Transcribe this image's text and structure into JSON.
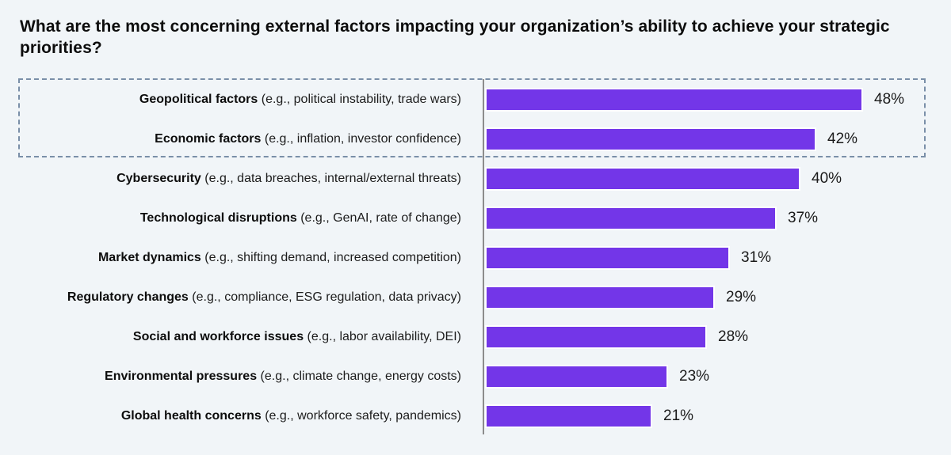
{
  "title": "What are the most concerning external factors impacting your organization’s ability to achieve your strategic priorities?",
  "colors": {
    "background": "#f1f5f8",
    "bar": "#7336e8",
    "bar_outline": "#ffffff",
    "axis_line": "#8c8c8c",
    "highlight_border": "#7a8fa8",
    "text": "#0d0d0d"
  },
  "chart_data": {
    "type": "bar",
    "orientation": "horizontal",
    "title": "What are the most concerning external factors impacting your organization’s ability to achieve your strategic priorities?",
    "unit": "%",
    "xlim": [
      0,
      56
    ],
    "gridlines": false,
    "value_labels_position": "end-of-bar",
    "highlight": {
      "style": "dashed-outline",
      "categories": [
        "Geopolitical factors",
        "Economic factors"
      ]
    },
    "categories": [
      "Geopolitical factors",
      "Economic factors",
      "Cybersecurity",
      "Technological disruptions",
      "Market dynamics",
      "Regulatory changes",
      "Social and workforce issues",
      "Environmental pressures",
      "Global health concerns"
    ],
    "values": [
      48,
      42,
      40,
      37,
      31,
      29,
      28,
      23,
      21
    ],
    "rows": [
      {
        "category": "Geopolitical factors",
        "detail": "(e.g., political instability, trade wars)",
        "value": 48,
        "label": "48%"
      },
      {
        "category": "Economic factors",
        "detail": "(e.g., inflation, investor confidence)",
        "value": 42,
        "label": "42%"
      },
      {
        "category": "Cybersecurity",
        "detail": "(e.g., data breaches, internal/external threats)",
        "value": 40,
        "label": "40%"
      },
      {
        "category": "Technological disruptions",
        "detail": "(e.g., GenAI, rate of change)",
        "value": 37,
        "label": "37%"
      },
      {
        "category": "Market dynamics",
        "detail": "(e.g., shifting demand, increased competition)",
        "value": 31,
        "label": "31%"
      },
      {
        "category": "Regulatory changes",
        "detail": "(e.g., compliance, ESG regulation, data privacy)",
        "value": 29,
        "label": "29%"
      },
      {
        "category": "Social and workforce issues",
        "detail": "(e.g., labor availability, DEI)",
        "value": 28,
        "label": "28%"
      },
      {
        "category": "Environmental pressures",
        "detail": "(e.g., climate change, energy costs)",
        "value": 23,
        "label": "23%"
      },
      {
        "category": "Global health concerns",
        "detail": "(e.g., workforce safety, pandemics)",
        "value": 21,
        "label": "21%"
      }
    ]
  }
}
